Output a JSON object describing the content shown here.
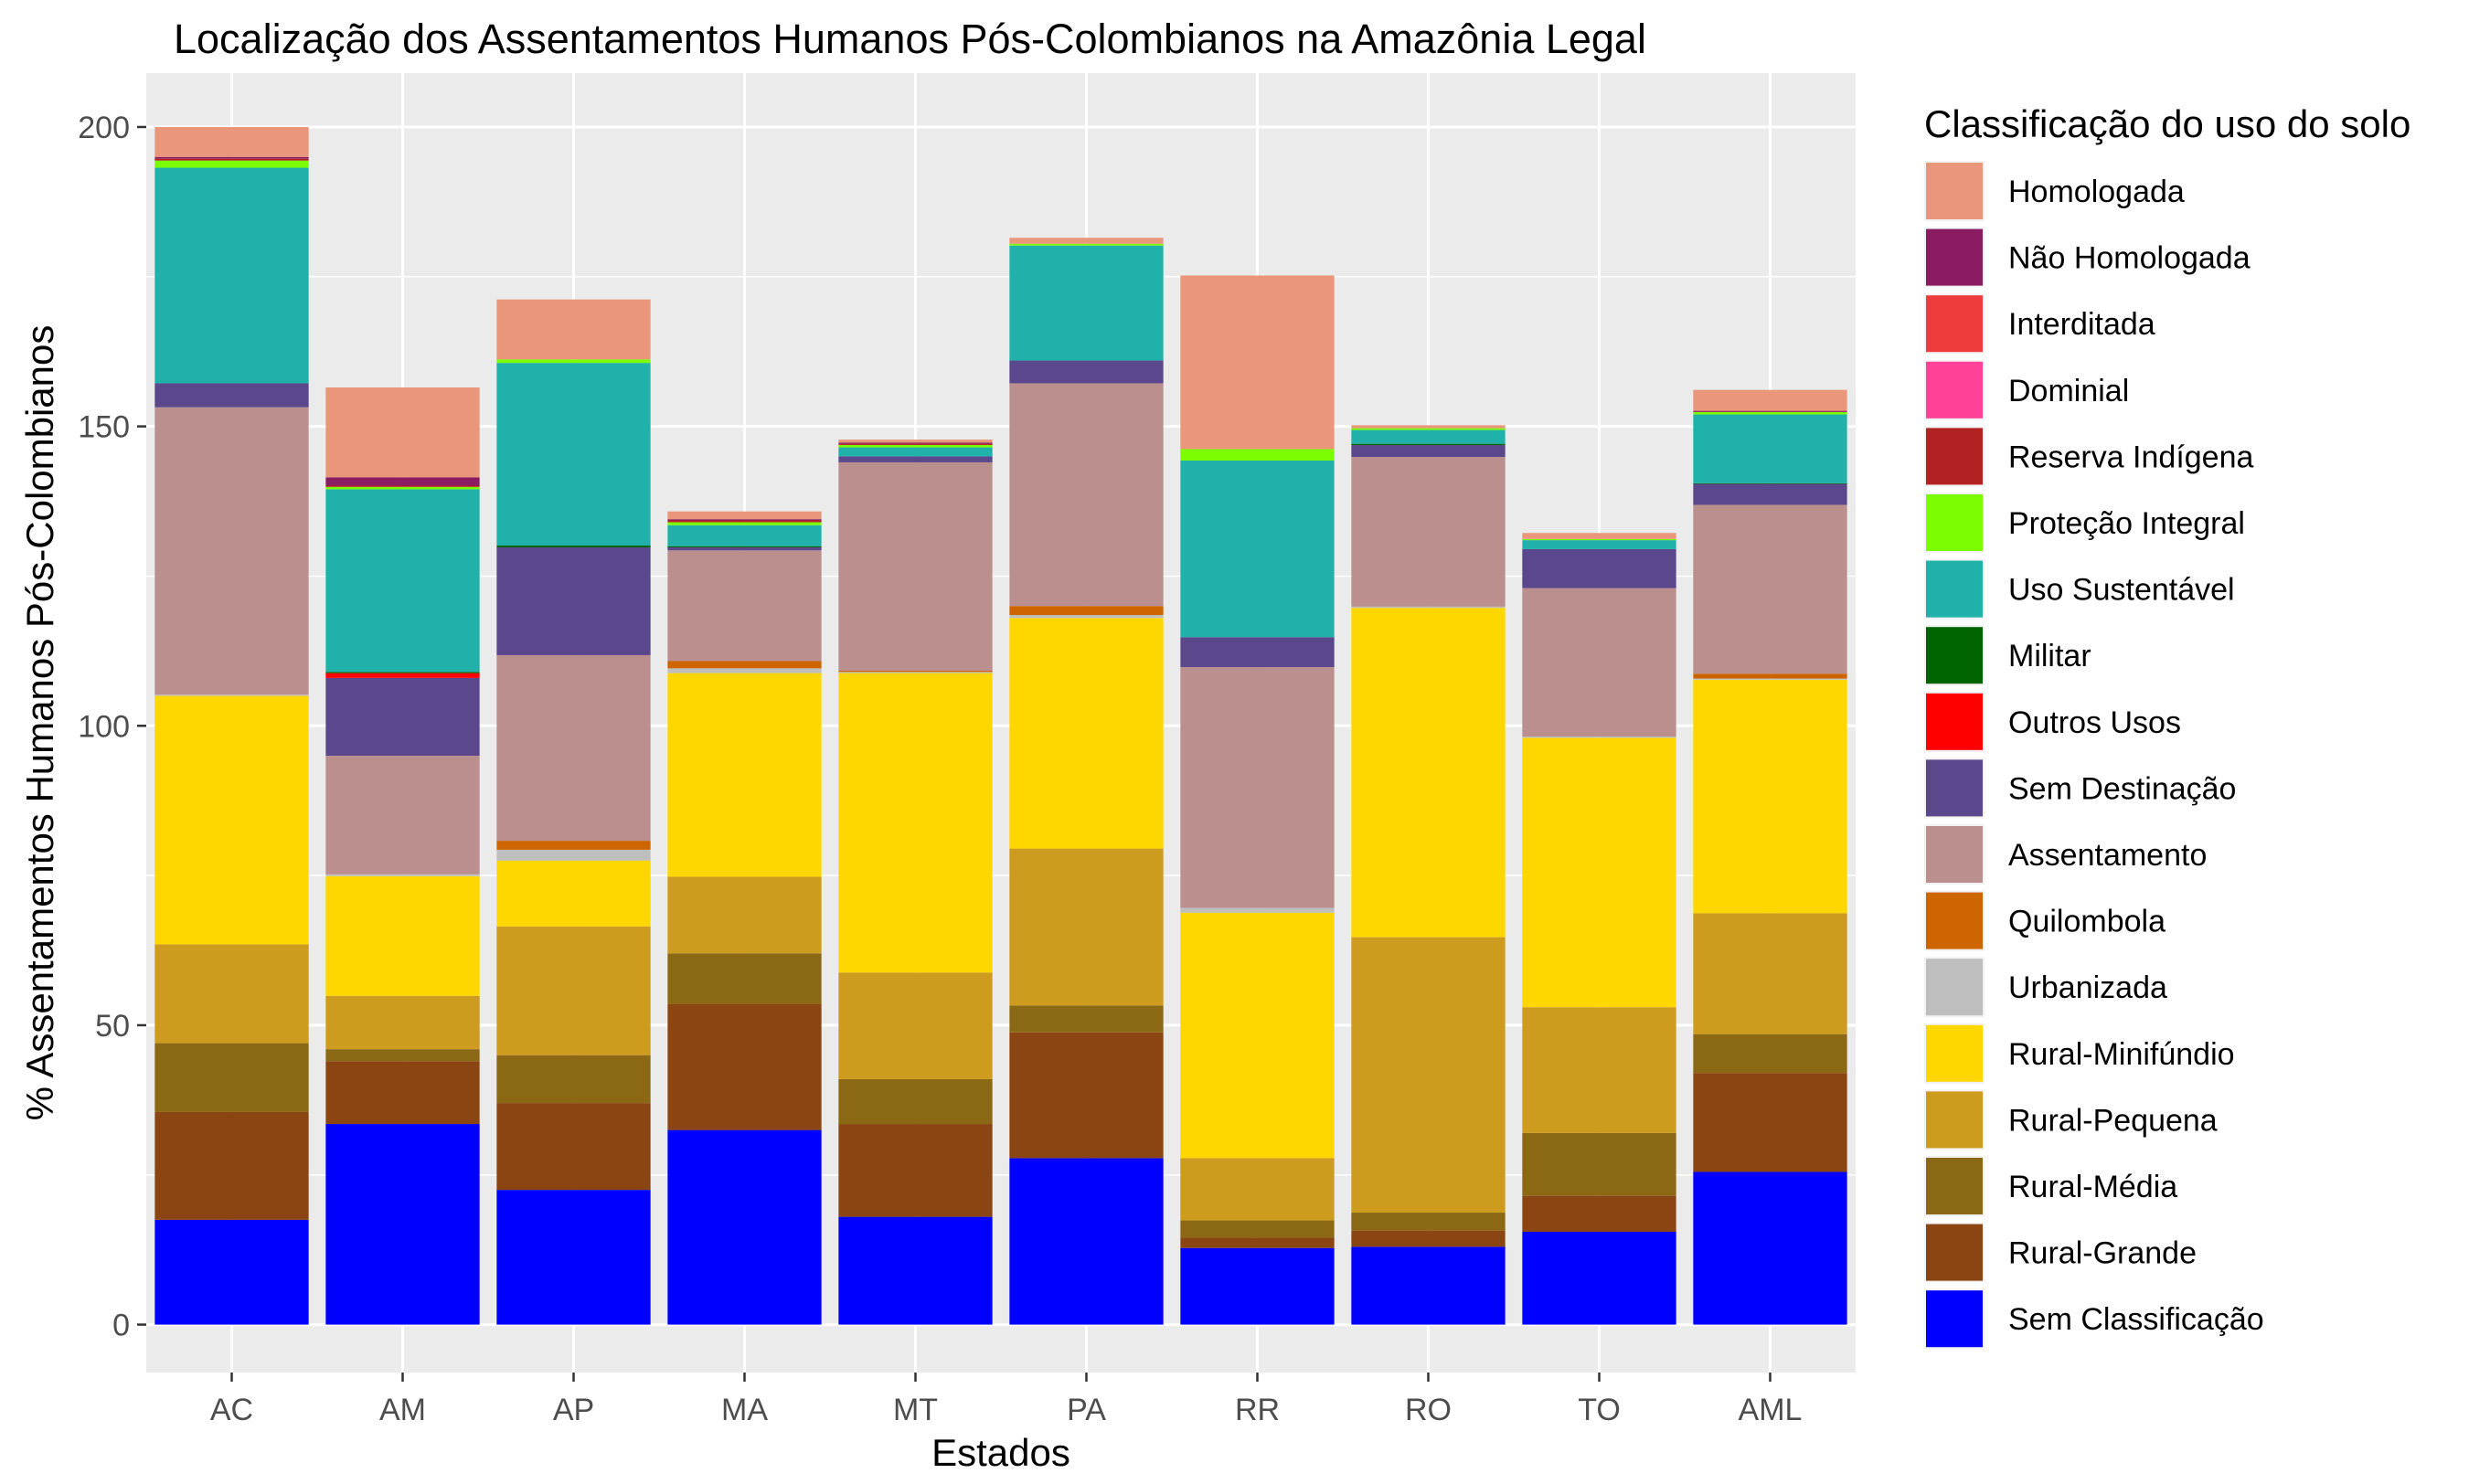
{
  "chart_data": {
    "type": "bar",
    "stacked": true,
    "title": "Localização dos Assentamentos Humanos Pós-Colombianos na Amazônia Legal",
    "xlabel": "Estados",
    "ylabel": "% Assentamentos Humanos Pós-Colombianos",
    "ylim": [
      -8,
      209
    ],
    "yticks": [
      0,
      50,
      100,
      150,
      200
    ],
    "grid": true,
    "legend_position": "right",
    "legend_title": "Classificação do uso do solo",
    "categories": [
      "AC",
      "AM",
      "AP",
      "MA",
      "MT",
      "PA",
      "RR",
      "RO",
      "TO",
      "AML"
    ],
    "series": [
      {
        "name": "Sem Classificação",
        "color": "#0000FF",
        "values": [
          17.5,
          33.5,
          22.5,
          32.5,
          18.0,
          27.8,
          12.8,
          13.0,
          15.5,
          25.5
        ]
      },
      {
        "name": "Rural-Grande",
        "color": "#8B4513",
        "values": [
          18.0,
          10.5,
          14.5,
          21.0,
          15.5,
          21.0,
          1.7,
          2.7,
          6.0,
          16.5
        ]
      },
      {
        "name": "Rural-Média",
        "color": "#8B6914",
        "values": [
          11.5,
          2.0,
          8.0,
          8.5,
          7.5,
          4.5,
          2.9,
          3.0,
          10.5,
          6.5
        ]
      },
      {
        "name": "Rural-Pequena",
        "color": "#CD9B1D",
        "values": [
          16.5,
          8.9,
          21.5,
          12.8,
          17.8,
          26.2,
          10.4,
          46.0,
          21.0,
          20.2
        ]
      },
      {
        "name": "Rural-Minifúndio",
        "color": "#FFD700",
        "values": [
          41.5,
          20.0,
          11.0,
          34.0,
          50.0,
          38.5,
          41.0,
          55.0,
          45.0,
          39.0
        ]
      },
      {
        "name": "Urbanizada",
        "color": "#BEBEBE",
        "values": [
          0.2,
          0.3,
          1.8,
          0.8,
          0.2,
          0.5,
          0.8,
          0.2,
          0.2,
          0.2
        ]
      },
      {
        "name": "Quilombola",
        "color": "#CD6600",
        "values": [
          0.0,
          0.0,
          1.5,
          1.2,
          0.2,
          1.5,
          0.0,
          0.0,
          0.0,
          0.8
        ]
      },
      {
        "name": "Assentamento",
        "color": "#BC8F8F",
        "values": [
          48.0,
          19.8,
          31.0,
          18.5,
          34.8,
          37.2,
          40.2,
          25.0,
          24.8,
          28.2
        ]
      },
      {
        "name": "Sem Destinação",
        "color": "#5B478C",
        "values": [
          4.0,
          13.0,
          18.0,
          0.5,
          1.0,
          3.8,
          5.0,
          2.0,
          6.5,
          3.5
        ]
      },
      {
        "name": "Outros Usos",
        "color": "#FF0000",
        "values": [
          0.0,
          0.8,
          0.0,
          0.0,
          0.0,
          0.0,
          0.0,
          0.0,
          0.0,
          0.0
        ]
      },
      {
        "name": "Militar",
        "color": "#006400",
        "values": [
          0.0,
          0.2,
          0.3,
          0.2,
          0.0,
          0.0,
          0.0,
          0.2,
          0.0,
          0.1
        ]
      },
      {
        "name": "Uso Sustentável",
        "color": "#20B2AA",
        "values": [
          36.0,
          30.5,
          30.5,
          3.5,
          1.5,
          19.2,
          29.5,
          2.3,
          1.5,
          11.5
        ]
      },
      {
        "name": "Proteção Integral",
        "color": "#7CFC00",
        "values": [
          1.2,
          0.4,
          0.6,
          0.5,
          0.4,
          0.3,
          1.9,
          0.3,
          0.2,
          0.4
        ]
      },
      {
        "name": "Reserva Indígena",
        "color": "#B22222",
        "values": [
          0.3,
          0.2,
          0.0,
          0.3,
          0.2,
          0.0,
          0.0,
          0.0,
          0.0,
          0.0
        ]
      },
      {
        "name": "Dominial",
        "color": "#FF4198",
        "values": [
          0.0,
          0.0,
          0.0,
          0.0,
          0.0,
          0.0,
          0.0,
          0.0,
          0.0,
          0.0
        ]
      },
      {
        "name": "Interditada",
        "color": "#EE3B3B",
        "values": [
          0.0,
          0.0,
          0.0,
          0.0,
          0.0,
          0.0,
          0.0,
          0.0,
          0.0,
          0.0
        ]
      },
      {
        "name": "Não Homologada",
        "color": "#8B1C62",
        "values": [
          0.3,
          1.4,
          0.0,
          0.2,
          0.2,
          0.0,
          0.0,
          0.0,
          0.0,
          0.2
        ]
      },
      {
        "name": "Homologada",
        "color": "#E9967A",
        "values": [
          5.0,
          15.0,
          10.0,
          1.3,
          0.5,
          1.0,
          29.0,
          0.5,
          1.0,
          3.5
        ]
      }
    ]
  }
}
